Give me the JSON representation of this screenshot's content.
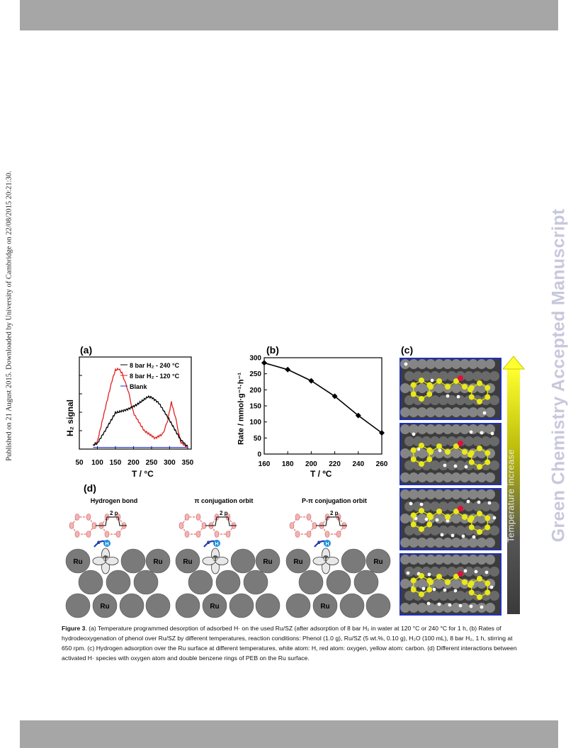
{
  "header": {},
  "side_note": "Published on 21 August 2015. Downloaded by University of Cambridge on 22/08/2015 20:21:30.",
  "watermark": "Green Chemistry Accepted Manuscript",
  "colors": {
    "band": "#a6a6a6",
    "watermark": "#c8c8dc",
    "series_240": "#000000",
    "series_120": "#e02020",
    "blank": "#2030c0",
    "carbon": "#e8e81a",
    "oxygen": "#e0103a",
    "hydrogen": "#ffffff",
    "ru": "#7a7a7a"
  },
  "figure": {
    "panel_a": {
      "label": "(a)",
      "ylabel": "H₂ signal",
      "xlabel": "T / °C",
      "legend": [
        "8 bar H₂ - 240 °C",
        "8 bar H₂ - 120 °C",
        "Blank"
      ]
    },
    "panel_b": {
      "label": "(b)",
      "ylabel": "Rate / mmol·g⁻¹·h⁻¹",
      "xlabel": "T / ºC"
    },
    "panel_c": {
      "label": "(c)",
      "arrow_label": "Temperature increase"
    },
    "panel_d": {
      "label": "(d)",
      "groups": [
        {
          "title": "Hydrogen bond",
          "orbital": "2 p",
          "d_orbital": "4 d",
          "electron": "e⁻",
          "h": "H",
          "ru_labels": [
            "Ru",
            "Ru",
            "Ru"
          ]
        },
        {
          "title": "π conjugation orbit",
          "orbital": "2 p",
          "d_orbital": "4 d",
          "electron": "e⁻",
          "h": "H",
          "ru_labels": [
            "Ru",
            "Ru",
            "Ru"
          ]
        },
        {
          "title": "P-π conjugation orbit",
          "orbital": "2 p",
          "d_orbital": "4 d",
          "electron": "e⁻",
          "h": "H",
          "ru_labels": [
            "Ru",
            "Ru",
            "Ru"
          ]
        }
      ]
    }
  },
  "chart_data": [
    {
      "type": "line",
      "title": "",
      "xlabel": "T / °C",
      "ylabel": "H₂ signal",
      "xlim": [
        50,
        360
      ],
      "xticks": [
        50,
        100,
        150,
        200,
        250,
        300,
        350
      ],
      "yticks": [],
      "legend_position": "top-right",
      "series": [
        {
          "name": "8 bar H₂ - 240 °C",
          "color": "#000000",
          "x": [
            88,
            100,
            120,
            150,
            180,
            210,
            240,
            250,
            270,
            300,
            330,
            350
          ],
          "y": [
            0.04,
            0.06,
            0.2,
            0.44,
            0.49,
            0.55,
            0.63,
            0.62,
            0.55,
            0.35,
            0.13,
            0.04
          ]
        },
        {
          "name": "8 bar H₂ - 120 °C",
          "color": "#e02020",
          "x": [
            88,
            100,
            120,
            140,
            150,
            160,
            170,
            185,
            200,
            230,
            260,
            280,
            295,
            305,
            315,
            330,
            350
          ],
          "y": [
            0.04,
            0.08,
            0.45,
            0.82,
            0.96,
            0.98,
            0.92,
            0.7,
            0.45,
            0.22,
            0.12,
            0.17,
            0.36,
            0.57,
            0.4,
            0.1,
            0.03
          ]
        },
        {
          "name": "Blank",
          "color": "#2030c0",
          "x": [
            88,
            350
          ],
          "y": [
            0.02,
            0.02
          ]
        }
      ]
    },
    {
      "type": "line",
      "title": "",
      "xlabel": "T / ºC",
      "ylabel": "Rate / mmol·g⁻¹·h⁻¹",
      "xlim": [
        160,
        260
      ],
      "ylim": [
        0,
        300
      ],
      "xticks": [
        160,
        180,
        200,
        220,
        240,
        260
      ],
      "yticks": [
        0,
        50,
        100,
        150,
        200,
        250,
        300
      ],
      "grid": false,
      "series": [
        {
          "name": "",
          "x": [
            160,
            180,
            200,
            220,
            240,
            260
          ],
          "y": [
            284,
            263,
            228,
            180,
            120,
            66
          ]
        }
      ]
    }
  ],
  "caption": {
    "label": "Figure 3",
    "text": ". (a) Temperature programmed desorption of adsorbed H· on the used Ru/SZ (after adsorption of 8 bar H₂ in water at 120 °C or 240 °C for 1 h, (b) Rates of hydrodeoxygenation of phenol over Ru/SZ by different temperatures, reaction conditions: Phenol (1.0 g), Ru/SZ (5 wt.%, 0.10 g), H₂O (100 mL), 8 bar H₂, 1 h, stirring at 650 rpm. (c) Hydrogen adsorption over the Ru surface at different temperatures, white atom: H, red atom: oxygen, yellow atom: carbon. (d) Different interactions between activated H· species with oxygen atom and double benzene rings of PEB on the Ru surface."
  }
}
